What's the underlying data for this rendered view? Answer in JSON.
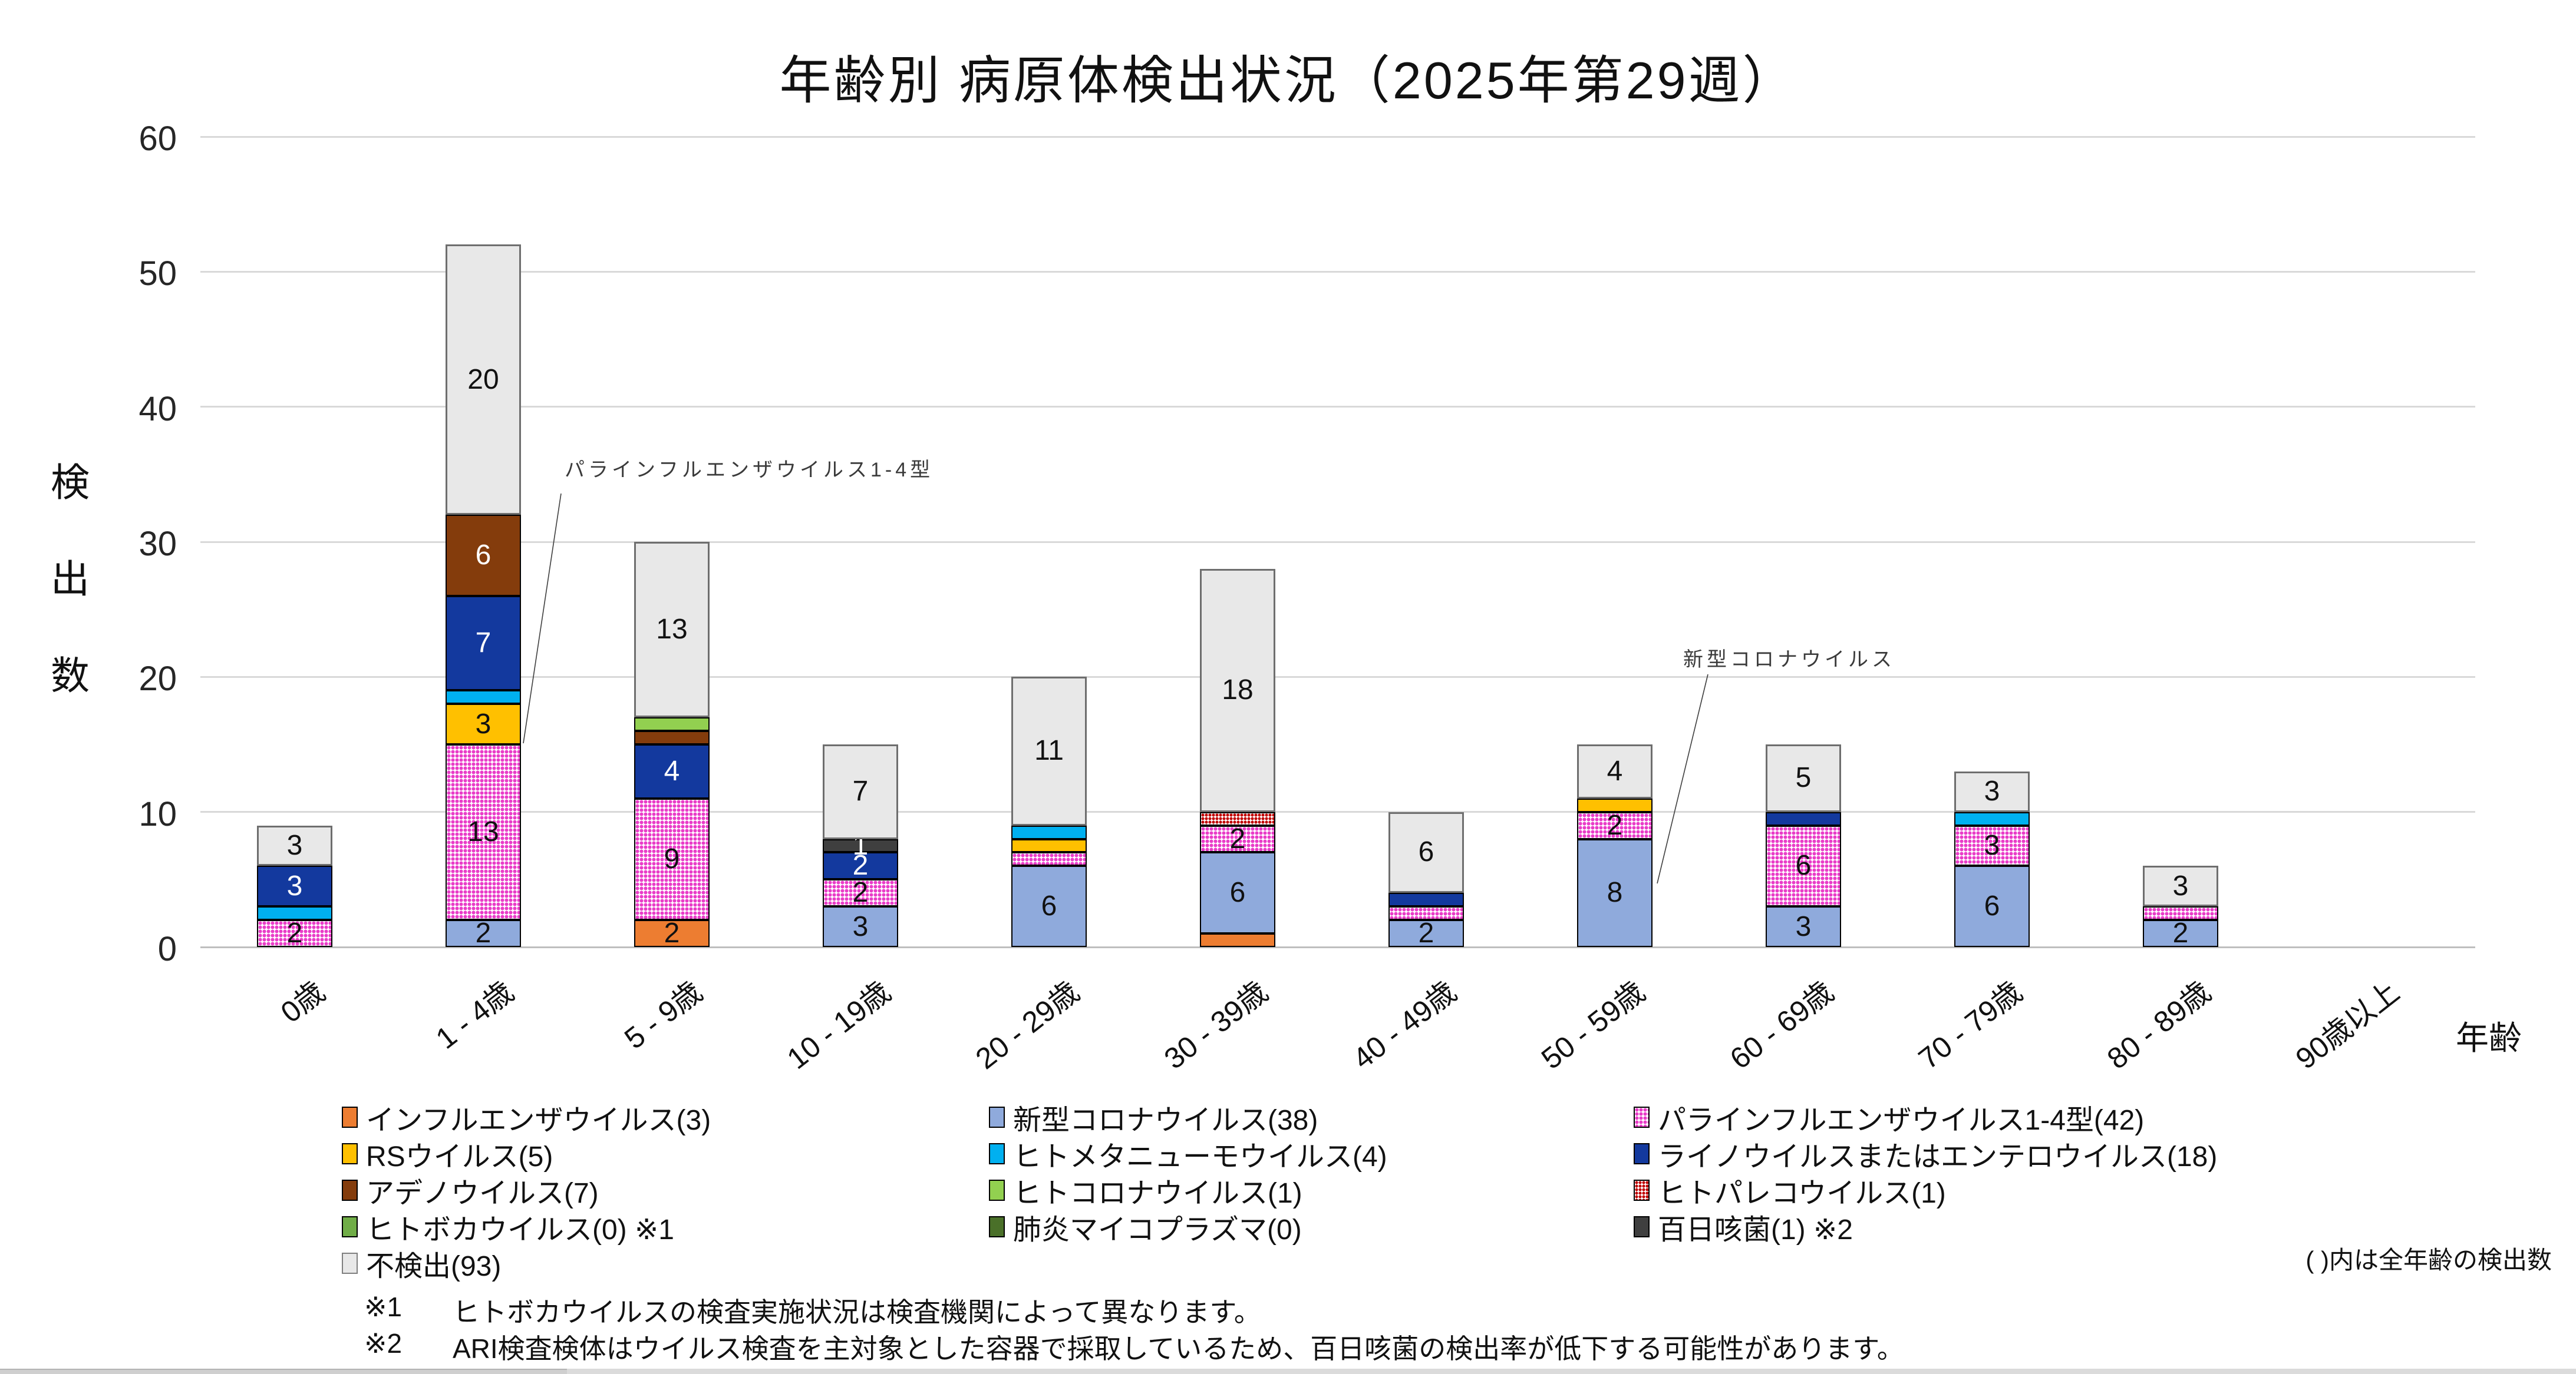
{
  "title": "年齢別 病原体検出状況（2025年第29週）",
  "y_axis": {
    "title": "検出数",
    "title_chars": [
      "検",
      "出",
      "数"
    ],
    "ticks": [
      "0",
      "10",
      "20",
      "30",
      "40",
      "50",
      "60"
    ]
  },
  "x_axis": {
    "title": "年齢"
  },
  "annotations": {
    "parainfluenza": "パラインフルエンザウイルス1-4型",
    "covid": "新型コロナウイルス"
  },
  "legend": {
    "columns": [
      [
        {
          "key": "influenza",
          "label": "インフルエンザウイルス(3)"
        },
        {
          "key": "rs",
          "label": "RSウイルス(5)"
        },
        {
          "key": "adeno",
          "label": "アデノウイルス(7)"
        },
        {
          "key": "boca",
          "label": "ヒトボカウイルス(0) ※1"
        },
        {
          "key": "not_detected",
          "label": "不検出(93)"
        }
      ],
      [
        {
          "key": "covid",
          "label": "新型コロナウイルス(38)"
        },
        {
          "key": "hmpv",
          "label": "ヒトメタニューモウイルス(4)"
        },
        {
          "key": "hcov",
          "label": "ヒトコロナウイルス(1)"
        },
        {
          "key": "myco",
          "label": "肺炎マイコプラズマ(0)"
        }
      ],
      [
        {
          "key": "parainfluenza",
          "label": "パラインフルエンザウイルス1-4型(42)"
        },
        {
          "key": "rhino",
          "label": "ライノウイルスまたはエンテロウイルス(18)"
        },
        {
          "key": "parecho",
          "label": "ヒトパレコウイルス(1)"
        },
        {
          "key": "pertussis",
          "label": "百日咳菌(1) ※2"
        }
      ]
    ]
  },
  "notes": {
    "paren": "( )内は全年齢の検出数",
    "fn1_mark": "※1",
    "fn1_text": "ヒトボカウイルスの検査実施状況は検査機関によって異なります。",
    "fn2_mark": "※2",
    "fn2_text": "ARI検査検体はウイルス検査を主対象とした容器で採取しているため、百日咳菌の検出率が低下する可能性があります。"
  },
  "chart_data": {
    "type": "bar",
    "stacked": true,
    "grid": true,
    "ylim": [
      0,
      60
    ],
    "y_tick_step": 10,
    "legend_position": "bottom",
    "categories": [
      "0歳",
      "1 - 4歳",
      "5 - 9歳",
      "10 - 19歳",
      "20 - 29歳",
      "30 - 39歳",
      "40 - 49歳",
      "50 - 59歳",
      "60 - 69歳",
      "70 - 79歳",
      "80 - 89歳",
      "90歳以上"
    ],
    "min_label_value": 2,
    "series": [
      {
        "key": "influenza",
        "name": "インフルエンザウイルス",
        "total": 3,
        "color": "#ED7D31",
        "pattern": null,
        "label_color": "#111111",
        "force_label": false,
        "values": [
          0,
          0,
          2,
          0,
          0,
          1,
          0,
          0,
          0,
          0,
          0,
          0
        ]
      },
      {
        "key": "covid",
        "name": "新型コロナウイルス",
        "total": 38,
        "color": "#8FAADC",
        "pattern": null,
        "label_color": "#111111",
        "force_label": false,
        "values": [
          0,
          2,
          0,
          3,
          6,
          6,
          2,
          8,
          3,
          6,
          2,
          0
        ]
      },
      {
        "key": "parainfluenza",
        "name": "パラインフルエンザウイルス1-4型",
        "total": 42,
        "color": "#E93CC8",
        "pattern": "dots",
        "label_color": "#111111",
        "force_label": false,
        "values": [
          2,
          13,
          9,
          2,
          1,
          2,
          1,
          2,
          6,
          3,
          1,
          0
        ]
      },
      {
        "key": "rs",
        "name": "RSウイルス",
        "total": 5,
        "color": "#FFC000",
        "pattern": null,
        "label_color": "#111111",
        "force_label": false,
        "values": [
          0,
          3,
          0,
          0,
          1,
          0,
          0,
          1,
          0,
          0,
          0,
          0
        ]
      },
      {
        "key": "hmpv",
        "name": "ヒトメタニューモウイルス",
        "total": 4,
        "color": "#00B0F0",
        "pattern": null,
        "label_color": "#111111",
        "force_label": false,
        "values": [
          1,
          1,
          0,
          0,
          1,
          0,
          0,
          0,
          0,
          1,
          0,
          0
        ]
      },
      {
        "key": "rhino",
        "name": "ライノウイルスまたはエンテロウイルス",
        "total": 18,
        "color": "#13399E",
        "pattern": null,
        "label_color": "#ffffff",
        "force_label": false,
        "values": [
          3,
          7,
          4,
          2,
          0,
          0,
          1,
          0,
          1,
          0,
          0,
          0
        ]
      },
      {
        "key": "adeno",
        "name": "アデノウイルス",
        "total": 7,
        "color": "#843C0C",
        "pattern": null,
        "label_color": "#ffffff",
        "force_label": false,
        "values": [
          0,
          6,
          1,
          0,
          0,
          0,
          0,
          0,
          0,
          0,
          0,
          0
        ]
      },
      {
        "key": "hcov",
        "name": "ヒトコロナウイルス",
        "total": 1,
        "color": "#92D050",
        "pattern": null,
        "label_color": "#111111",
        "force_label": false,
        "values": [
          0,
          0,
          1,
          0,
          0,
          0,
          0,
          0,
          0,
          0,
          0,
          0
        ]
      },
      {
        "key": "parecho",
        "name": "ヒトパレコウイルス",
        "total": 1,
        "color": "#C00000",
        "pattern": "dots",
        "label_color": "#111111",
        "force_label": false,
        "values": [
          0,
          0,
          0,
          0,
          0,
          1,
          0,
          0,
          0,
          0,
          0,
          0
        ]
      },
      {
        "key": "boca",
        "name": "ヒトボカウイルス",
        "total": 0,
        "color": "#70AD47",
        "pattern": null,
        "label_color": "#111111",
        "force_label": false,
        "values": [
          0,
          0,
          0,
          0,
          0,
          0,
          0,
          0,
          0,
          0,
          0,
          0
        ]
      },
      {
        "key": "myco",
        "name": "肺炎マイコプラズマ",
        "total": 0,
        "color": "#4A7029",
        "pattern": null,
        "label_color": "#111111",
        "force_label": false,
        "values": [
          0,
          0,
          0,
          0,
          0,
          0,
          0,
          0,
          0,
          0,
          0,
          0
        ]
      },
      {
        "key": "pertussis",
        "name": "百日咳菌",
        "total": 1,
        "color": "#3F3F3F",
        "pattern": null,
        "label_color": "#ffffff",
        "force_label": true,
        "values": [
          0,
          0,
          0,
          1,
          0,
          0,
          0,
          0,
          0,
          0,
          0,
          0
        ]
      },
      {
        "key": "not_detected",
        "name": "不検出",
        "total": 93,
        "color": "#E8E8E8",
        "pattern": null,
        "label_color": "#111111",
        "force_label": false,
        "values": [
          3,
          20,
          13,
          7,
          11,
          18,
          6,
          4,
          5,
          3,
          3,
          0
        ]
      }
    ]
  }
}
